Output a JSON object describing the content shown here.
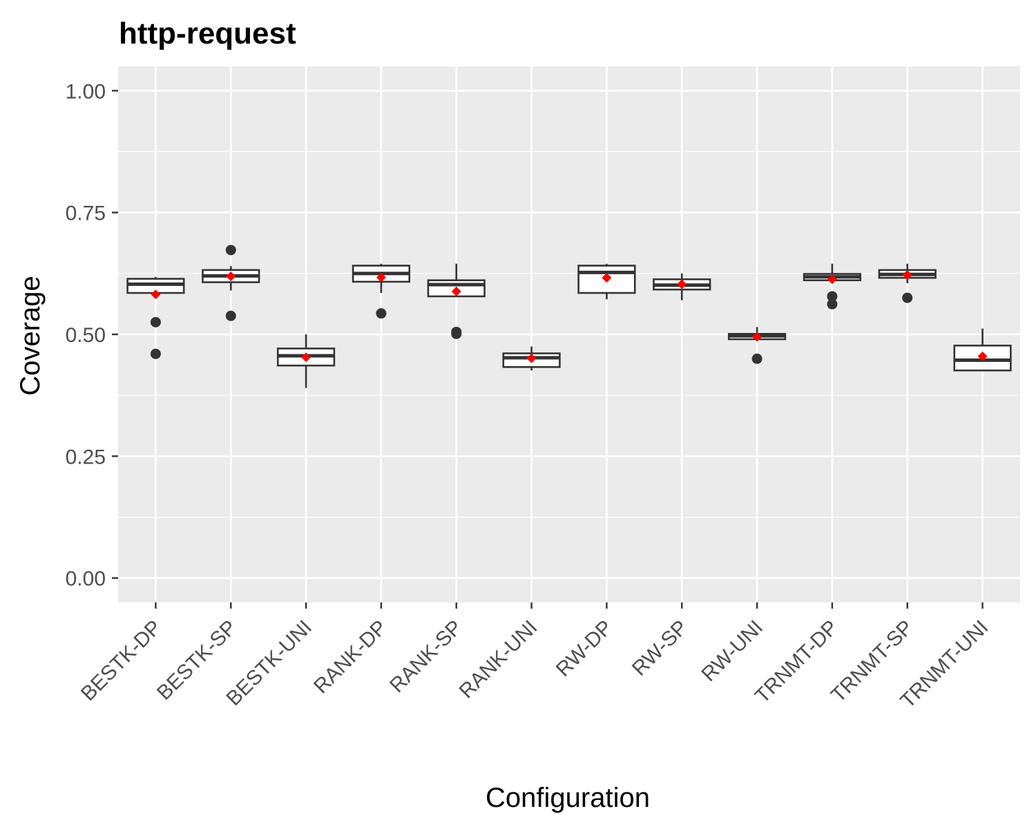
{
  "chart_data": {
    "type": "boxplot",
    "title": "http-request",
    "xlabel": "Configuration",
    "ylabel": "Coverage",
    "ylim": [
      -0.05,
      1.05
    ],
    "yticks": [
      "0.00",
      "0.25",
      "0.50",
      "0.75",
      "1.00"
    ],
    "ytick_values": [
      0,
      0.25,
      0.5,
      0.75,
      1.0
    ],
    "grid": true,
    "legend": "none",
    "colors": {
      "panel": "#ebebeb",
      "grid": "#ffffff",
      "box_line": "#333333",
      "box_fill": "#ffffff",
      "outlier": "#333333",
      "mean": "#ff0000",
      "tick_text": "#4d4d4d"
    },
    "categories": [
      "BESTK-DP",
      "BESTK-SP",
      "BESTK-UNI",
      "RANK-DP",
      "RANK-SP",
      "RANK-UNI",
      "RW-DP",
      "RW-SP",
      "RW-UNI",
      "TRNMT-DP",
      "TRNMT-SP",
      "TRNMT-UNI"
    ],
    "boxes": [
      {
        "min": 0.585,
        "q1": 0.585,
        "median": 0.603,
        "q3": 0.614,
        "max": 0.618,
        "mean": 0.582,
        "outliers": [
          0.525,
          0.46
        ]
      },
      {
        "min": 0.59,
        "q1": 0.607,
        "median": 0.62,
        "q3": 0.632,
        "max": 0.64,
        "mean": 0.619,
        "outliers": [
          0.673,
          0.538
        ]
      },
      {
        "min": 0.39,
        "q1": 0.436,
        "median": 0.456,
        "q3": 0.471,
        "max": 0.5,
        "mean": 0.453,
        "outliers": []
      },
      {
        "min": 0.585,
        "q1": 0.608,
        "median": 0.625,
        "q3": 0.641,
        "max": 0.645,
        "mean": 0.617,
        "outliers": [
          0.543
        ]
      },
      {
        "min": 0.578,
        "q1": 0.578,
        "median": 0.602,
        "q3": 0.611,
        "max": 0.645,
        "mean": 0.588,
        "outliers": [
          0.505,
          0.501
        ]
      },
      {
        "min": 0.426,
        "q1": 0.433,
        "median": 0.452,
        "q3": 0.461,
        "max": 0.475,
        "mean": 0.451,
        "outliers": []
      },
      {
        "min": 0.572,
        "q1": 0.585,
        "median": 0.627,
        "q3": 0.641,
        "max": 0.645,
        "mean": 0.616,
        "outliers": []
      },
      {
        "min": 0.57,
        "q1": 0.592,
        "median": 0.601,
        "q3": 0.613,
        "max": 0.625,
        "mean": 0.603,
        "outliers": []
      },
      {
        "min": 0.49,
        "q1": 0.49,
        "median": 0.497,
        "q3": 0.501,
        "max": 0.515,
        "mean": 0.495,
        "outliers": [
          0.45
        ]
      },
      {
        "min": 0.605,
        "q1": 0.611,
        "median": 0.618,
        "q3": 0.624,
        "max": 0.645,
        "mean": 0.613,
        "outliers": [
          0.578,
          0.562
        ]
      },
      {
        "min": 0.605,
        "q1": 0.616,
        "median": 0.623,
        "q3": 0.632,
        "max": 0.645,
        "mean": 0.622,
        "outliers": [
          0.575
        ]
      },
      {
        "min": 0.426,
        "q1": 0.426,
        "median": 0.447,
        "q3": 0.477,
        "max": 0.512,
        "mean": 0.455,
        "outliers": []
      }
    ]
  }
}
